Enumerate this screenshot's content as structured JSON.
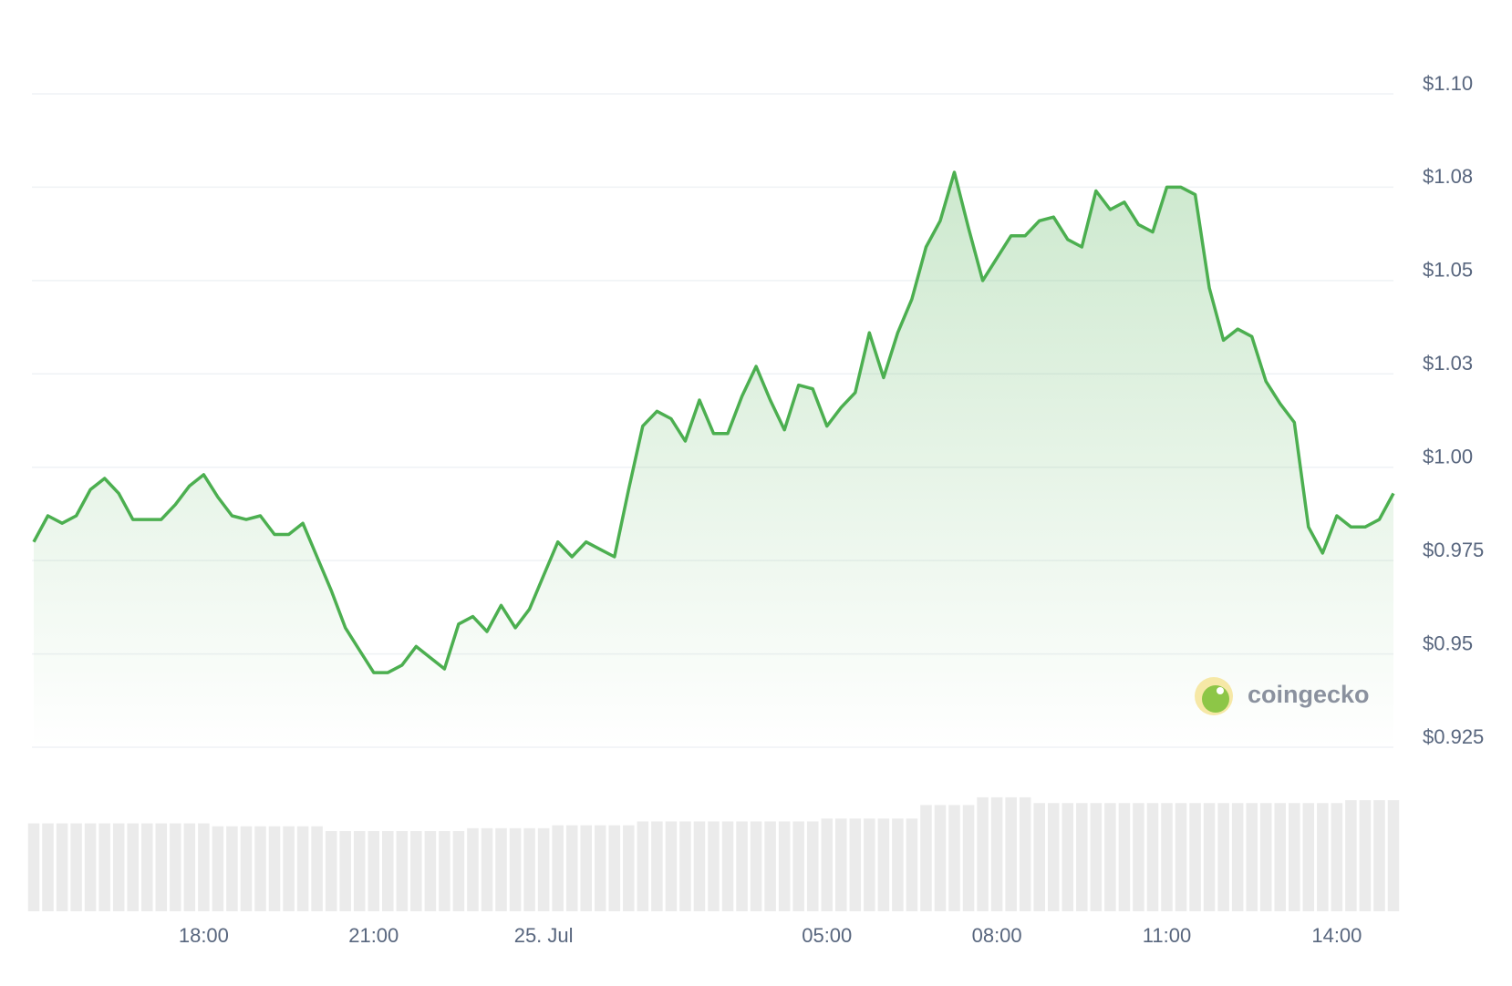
{
  "chart_data": {
    "type": "line",
    "watermark": "coingecko",
    "categories": [
      null,
      null,
      null,
      null,
      null,
      null,
      null,
      null,
      null,
      null,
      null,
      null,
      "18:00",
      null,
      null,
      null,
      null,
      null,
      null,
      null,
      null,
      null,
      null,
      null,
      "21:00",
      null,
      null,
      null,
      null,
      null,
      null,
      null,
      null,
      null,
      null,
      null,
      "25. Jul",
      null,
      null,
      null,
      null,
      null,
      null,
      null,
      null,
      null,
      null,
      null,
      null,
      null,
      null,
      null,
      null,
      null,
      null,
      null,
      "05:00",
      null,
      null,
      null,
      null,
      null,
      null,
      null,
      null,
      null,
      null,
      null,
      "08:00",
      null,
      null,
      null,
      null,
      null,
      null,
      null,
      null,
      null,
      null,
      null,
      "11:00",
      null,
      null,
      null,
      null,
      null,
      null,
      null,
      null,
      null,
      null,
      null,
      "14:00",
      null,
      null,
      null,
      null
    ],
    "series": [
      {
        "color": "#4caf50",
        "values": [
          0.98,
          0.987,
          0.985,
          0.987,
          0.994,
          0.997,
          0.993,
          0.986,
          0.986,
          0.986,
          0.99,
          0.995,
          0.998,
          0.992,
          0.987,
          0.986,
          0.987,
          0.982,
          0.982,
          0.985,
          0.976,
          0.967,
          0.957,
          0.951,
          0.945,
          0.945,
          0.947,
          0.952,
          0.949,
          0.946,
          0.958,
          0.96,
          0.956,
          0.963,
          0.957,
          0.962,
          0.971,
          0.98,
          0.976,
          0.98,
          0.978,
          0.976,
          0.994,
          1.011,
          1.015,
          1.013,
          1.007,
          1.018,
          1.009,
          1.009,
          1.019,
          1.027,
          1.018,
          1.01,
          1.022,
          1.021,
          1.011,
          1.016,
          1.02,
          1.036,
          1.024,
          1.036,
          1.045,
          1.059,
          1.066,
          1.079,
          1.064,
          1.05,
          1.056,
          1.062,
          1.062,
          1.066,
          1.067,
          1.061,
          1.059,
          1.074,
          1.069,
          1.071,
          1.065,
          1.063,
          1.075,
          1.075,
          1.073,
          1.048,
          1.034,
          1.037,
          1.035,
          1.023,
          1.017,
          1.012,
          0.984,
          0.977,
          0.987,
          0.984,
          0.984,
          0.986,
          0.993
        ]
      }
    ],
    "volume": [
      91,
      91,
      91,
      91,
      91,
      91,
      91,
      91,
      91,
      91,
      91,
      91,
      91,
      88,
      88,
      88,
      88,
      88,
      88,
      88,
      88,
      83,
      83,
      83,
      83,
      83,
      83,
      83,
      83,
      83,
      83,
      86,
      86,
      86,
      86,
      86,
      86,
      89,
      89,
      89,
      89,
      89,
      89,
      93,
      93,
      93,
      93,
      93,
      93,
      93,
      93,
      93,
      93,
      93,
      93,
      93,
      96,
      96,
      96,
      96,
      96,
      96,
      96,
      110,
      110,
      110,
      110,
      118,
      118,
      118,
      118,
      112,
      112,
      112,
      112,
      112,
      112,
      112,
      112,
      112,
      112,
      112,
      112,
      112,
      112,
      112,
      112,
      112,
      112,
      112,
      112,
      112,
      112,
      115,
      115,
      115,
      115
    ],
    "volume_color": "#ebebeb",
    "ylim": [
      0.925,
      1.1
    ],
    "yticks": [
      {
        "value": 1.1,
        "label": "$1.10"
      },
      {
        "value": 1.075,
        "label": "$1.08"
      },
      {
        "value": 1.05,
        "label": "$1.05"
      },
      {
        "value": 1.025,
        "label": "$1.03"
      },
      {
        "value": 1.0,
        "label": "$1.00"
      },
      {
        "value": 0.975,
        "label": "$0.975"
      },
      {
        "value": 0.95,
        "label": "$0.95"
      },
      {
        "value": 0.925,
        "label": "$0.925"
      }
    ],
    "grid": true
  }
}
